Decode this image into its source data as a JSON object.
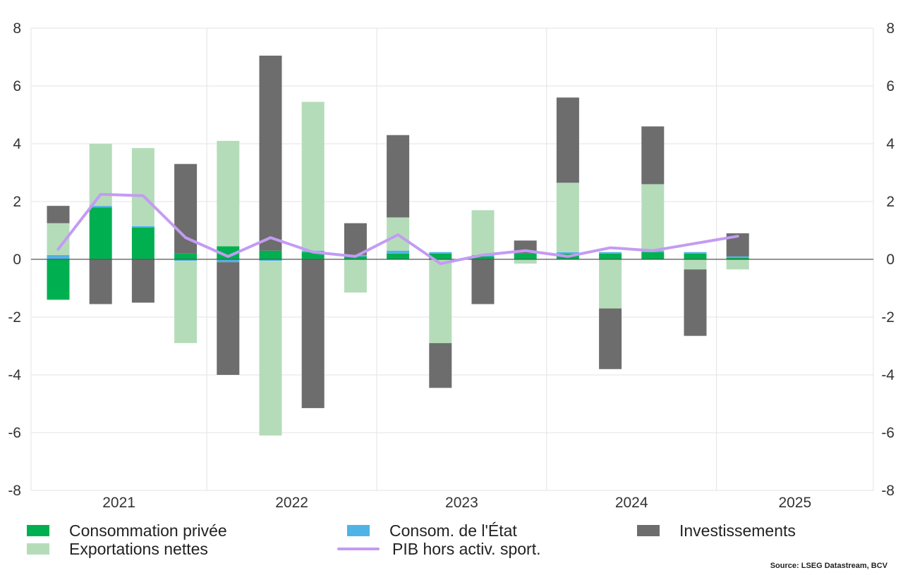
{
  "chart_data": {
    "type": "bar",
    "stacked": true,
    "title": "",
    "xlabel": "",
    "ylabel": "",
    "ylim": [
      -8,
      8
    ],
    "yticks": [
      -8,
      -6,
      -4,
      -2,
      0,
      2,
      4,
      6,
      8
    ],
    "secondary_yaxis": true,
    "grid": true,
    "year_labels": [
      "2021",
      "2022",
      "2023",
      "2024",
      "2025"
    ],
    "quarters": [
      "2021-Q1",
      "2021-Q2",
      "2021-Q3",
      "2021-Q4",
      "2022-Q1",
      "2022-Q2",
      "2022-Q3",
      "2022-Q4",
      "2023-Q1",
      "2023-Q2",
      "2023-Q3",
      "2023-Q4",
      "2024-Q1",
      "2024-Q2",
      "2024-Q3",
      "2024-Q4",
      "2025-Q1"
    ],
    "series": [
      {
        "name": "Consommation privée",
        "kind": "bar",
        "color": "#00b050",
        "values": [
          -1.4,
          1.8,
          1.1,
          0.2,
          0.45,
          0.3,
          0.25,
          0.1,
          0.2,
          0.2,
          0.1,
          0.2,
          0.2,
          0.2,
          0.25,
          0.2,
          0.05
        ]
      },
      {
        "name": "Consom. de l'État",
        "kind": "bar",
        "color": "#4fb3e6",
        "values": [
          0.15,
          0.05,
          0.05,
          -0.05,
          -0.1,
          -0.05,
          0.05,
          0.05,
          0.1,
          0.05,
          0.05,
          0.0,
          0.05,
          0.05,
          0.05,
          0.05,
          0.05
        ]
      },
      {
        "name": "Exportations nettes",
        "kind": "bar",
        "color": "#b5dcb9",
        "values": [
          1.1,
          2.15,
          2.7,
          -2.85,
          3.65,
          -6.05,
          5.15,
          -1.15,
          1.15,
          -2.9,
          1.55,
          -0.15,
          2.4,
          -1.7,
          2.3,
          -0.35,
          -0.35
        ]
      },
      {
        "name": "Investissements",
        "kind": "bar",
        "color": "#6d6d6d",
        "values": [
          0.6,
          -1.55,
          -1.5,
          3.1,
          -3.9,
          6.75,
          -5.15,
          1.1,
          2.85,
          -1.55,
          -1.55,
          0.45,
          2.95,
          -2.1,
          2.0,
          -2.3,
          0.8
        ]
      },
      {
        "name": "PIB hors activ. sport.",
        "kind": "line",
        "color": "#c39bf3",
        "values": [
          0.35,
          2.25,
          2.2,
          0.75,
          0.1,
          0.75,
          0.25,
          0.1,
          0.85,
          -0.15,
          0.15,
          0.3,
          0.1,
          0.4,
          0.3,
          0.55,
          0.8
        ]
      }
    ],
    "legend_position": "bottom"
  },
  "source": "Source: LSEG Datastream, BCV"
}
